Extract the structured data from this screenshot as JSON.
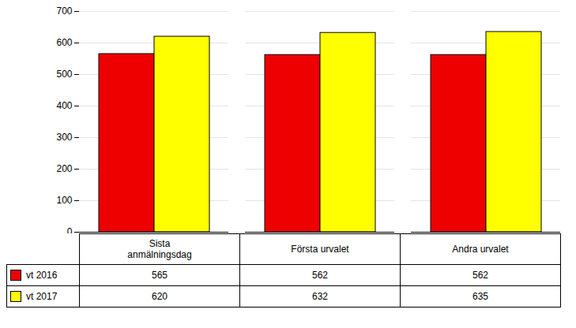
{
  "chart_data": {
    "type": "bar",
    "categories": [
      "Sista\nanmälningsdag",
      "Första urvalet",
      "Andra urvalet"
    ],
    "series": [
      {
        "name": "vt 2016",
        "color": "#ee0000",
        "values": [
          565,
          562,
          562
        ]
      },
      {
        "name": "vt 2017",
        "color": "#ffff00",
        "values": [
          620,
          632,
          635
        ]
      }
    ],
    "ylim": [
      0,
      700
    ],
    "yticks": [
      0,
      100,
      200,
      300,
      400,
      500,
      600,
      700
    ],
    "grid": true,
    "legend": "bottom",
    "data_labels": true
  }
}
